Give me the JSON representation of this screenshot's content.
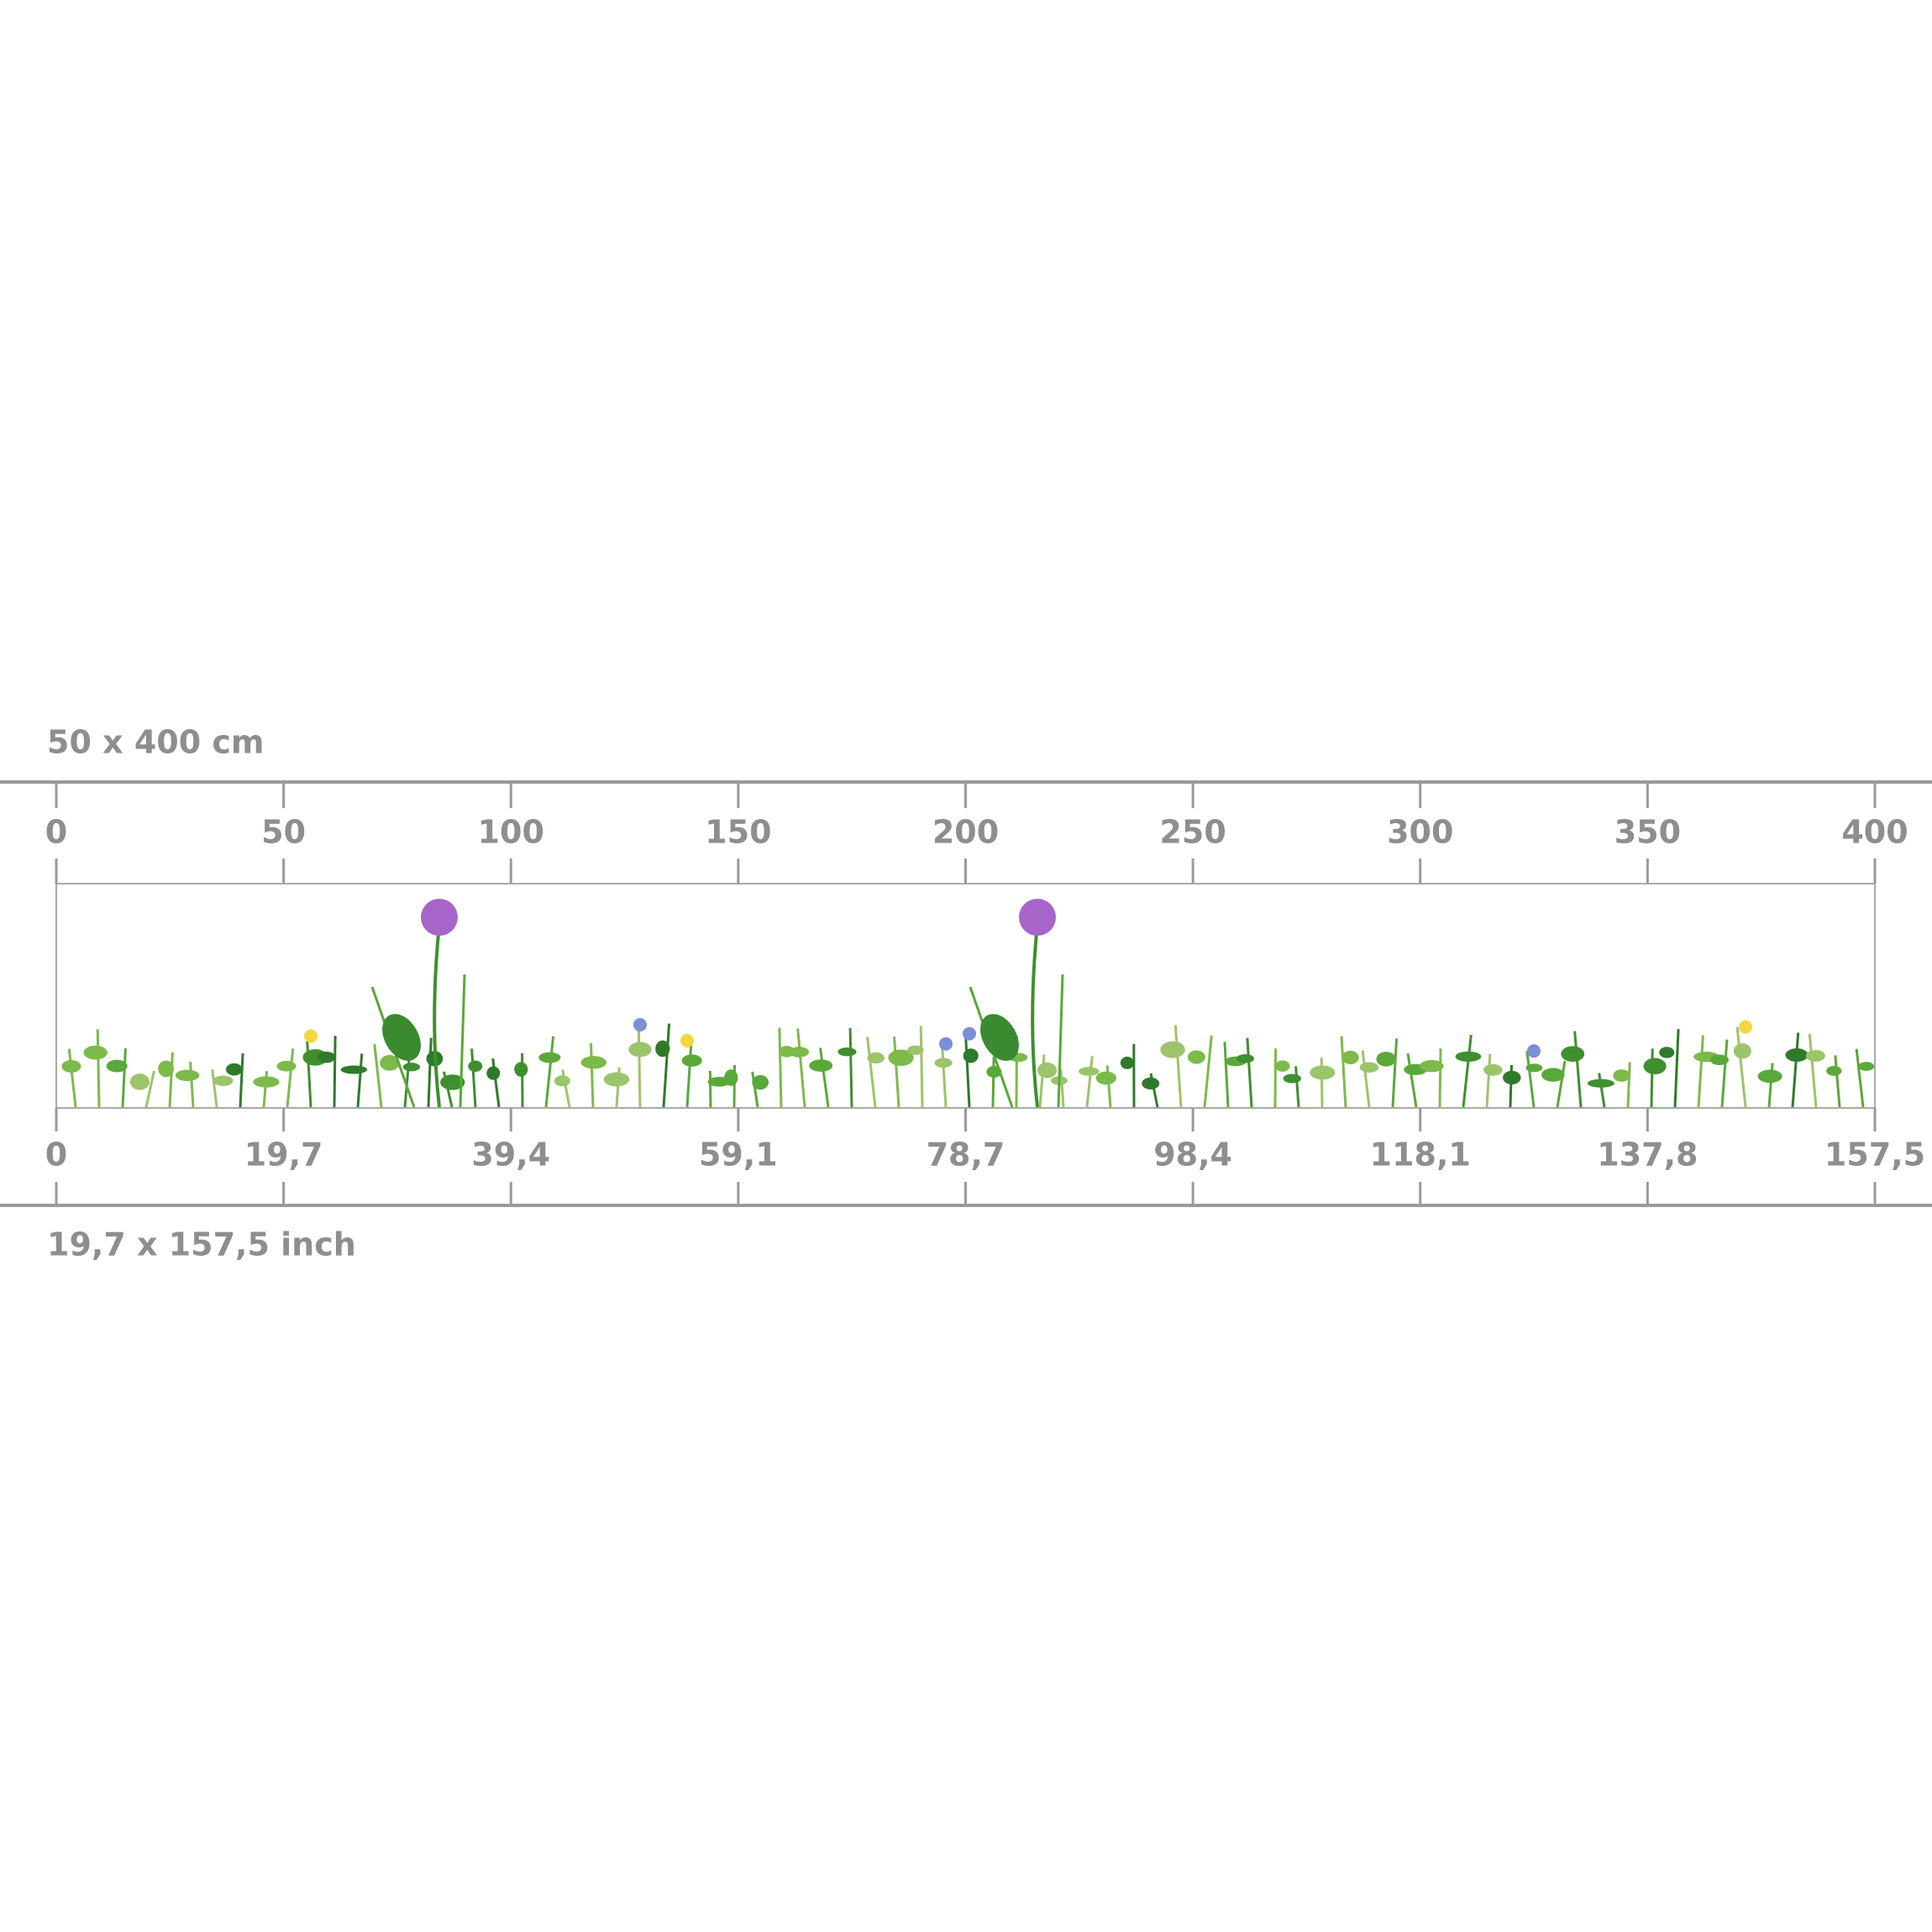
{
  "top_label": "50 x 400 cm",
  "cm_ticks": [
    "0",
    "50",
    "100",
    "150",
    "200",
    "250",
    "300",
    "350",
    "400"
  ],
  "inch_ticks": [
    "0",
    "19,7",
    "39,4",
    "59,1",
    "78,7",
    "98,4",
    "118,1",
    "137,8",
    "157,5"
  ],
  "bottom_label": "19,7 x 157,5 inch"
}
